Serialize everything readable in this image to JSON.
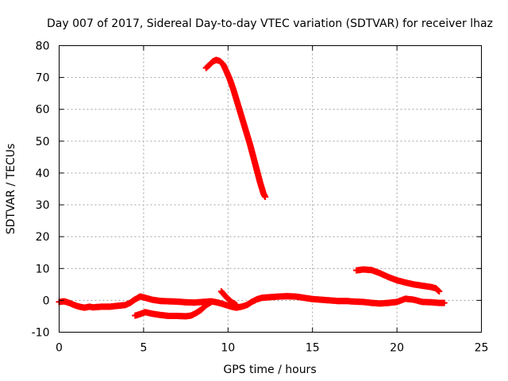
{
  "chart_data": {
    "type": "scatter",
    "title": "Day 007 of 2017, Sidereal Day-to-day VTEC variation (SDTVAR) for receiver lhaz",
    "xlabel": "GPS time / hours",
    "ylabel": "SDTVAR / TECUs",
    "xlim": [
      0,
      25
    ],
    "ylim": [
      -10,
      80
    ],
    "xticks": [
      0,
      5,
      10,
      15,
      20,
      25
    ],
    "yticks": [
      -10,
      0,
      10,
      20,
      30,
      40,
      50,
      60,
      70,
      80
    ],
    "grid": true,
    "marker": "plus",
    "color": "#ff0000",
    "series": [
      {
        "name": "baseline-track",
        "x": [
          0.0,
          0.3,
          0.6,
          0.9,
          1.2,
          1.5,
          1.8,
          2.0,
          2.5,
          3.0,
          3.5,
          3.9,
          4.2,
          4.5,
          4.8,
          5.1,
          5.5,
          6.0,
          6.5,
          7.0,
          7.5,
          8.0,
          8.5,
          9.0,
          9.3,
          9.6,
          9.9,
          10.2,
          10.5,
          10.8,
          11.1,
          11.4,
          11.7,
          12.0,
          12.5,
          13.0,
          13.5,
          14.0,
          14.5,
          15.0,
          15.5,
          16.0,
          16.5,
          17.0,
          17.5,
          18.0,
          18.5,
          19.0,
          19.5,
          20.0,
          20.5,
          21.0,
          21.5,
          22.0,
          22.5,
          22.8
        ],
        "y": [
          -0.5,
          -0.3,
          -0.8,
          -1.5,
          -2.0,
          -2.3,
          -2.0,
          -2.2,
          -2.0,
          -2.0,
          -1.7,
          -1.5,
          -0.8,
          0.3,
          1.2,
          0.8,
          0.2,
          -0.2,
          -0.3,
          -0.4,
          -0.6,
          -0.7,
          -0.5,
          -0.3,
          -0.6,
          -1.0,
          -1.5,
          -2.0,
          -2.3,
          -2.0,
          -1.5,
          -0.5,
          0.3,
          0.8,
          1.0,
          1.2,
          1.3,
          1.2,
          0.8,
          0.4,
          0.2,
          0.0,
          -0.2,
          -0.2,
          -0.4,
          -0.5,
          -0.8,
          -1.0,
          -0.8,
          -0.5,
          0.5,
          0.2,
          -0.5,
          -0.6,
          -0.8,
          -0.8
        ]
      },
      {
        "name": "lower-arc",
        "x": [
          4.5,
          4.8,
          5.1,
          5.5,
          6.0,
          6.5,
          7.0,
          7.5,
          7.8,
          8.1,
          8.4,
          8.7,
          9.0
        ],
        "y": [
          -4.8,
          -4.3,
          -3.7,
          -4.2,
          -4.6,
          -4.9,
          -4.9,
          -5.0,
          -4.8,
          -4.0,
          -3.0,
          -1.5,
          -0.5
        ]
      },
      {
        "name": "hook",
        "x": [
          9.6,
          9.9,
          10.2,
          10.5
        ],
        "y": [
          2.8,
          1.0,
          -0.5,
          -1.5
        ]
      },
      {
        "name": "peak-arc",
        "x": [
          8.7,
          8.9,
          9.1,
          9.3,
          9.5,
          9.7,
          9.9,
          10.1,
          10.3,
          10.5,
          10.7,
          10.9,
          11.1,
          11.3,
          11.5,
          11.7,
          11.9,
          12.1,
          12.2
        ],
        "y": [
          73.0,
          74.0,
          75.0,
          75.5,
          75.2,
          74.2,
          72.0,
          69.5,
          66.5,
          63.0,
          59.5,
          56.0,
          52.5,
          49.0,
          45.0,
          41.0,
          37.0,
          33.5,
          32.5
        ]
      },
      {
        "name": "mid-arc",
        "x": [
          17.6,
          18.0,
          18.5,
          19.0,
          19.5,
          20.0,
          20.5,
          21.0,
          21.5,
          22.0,
          22.3,
          22.5
        ],
        "y": [
          9.4,
          9.7,
          9.5,
          8.5,
          7.3,
          6.3,
          5.6,
          5.0,
          4.6,
          4.2,
          3.8,
          2.8
        ]
      }
    ]
  }
}
